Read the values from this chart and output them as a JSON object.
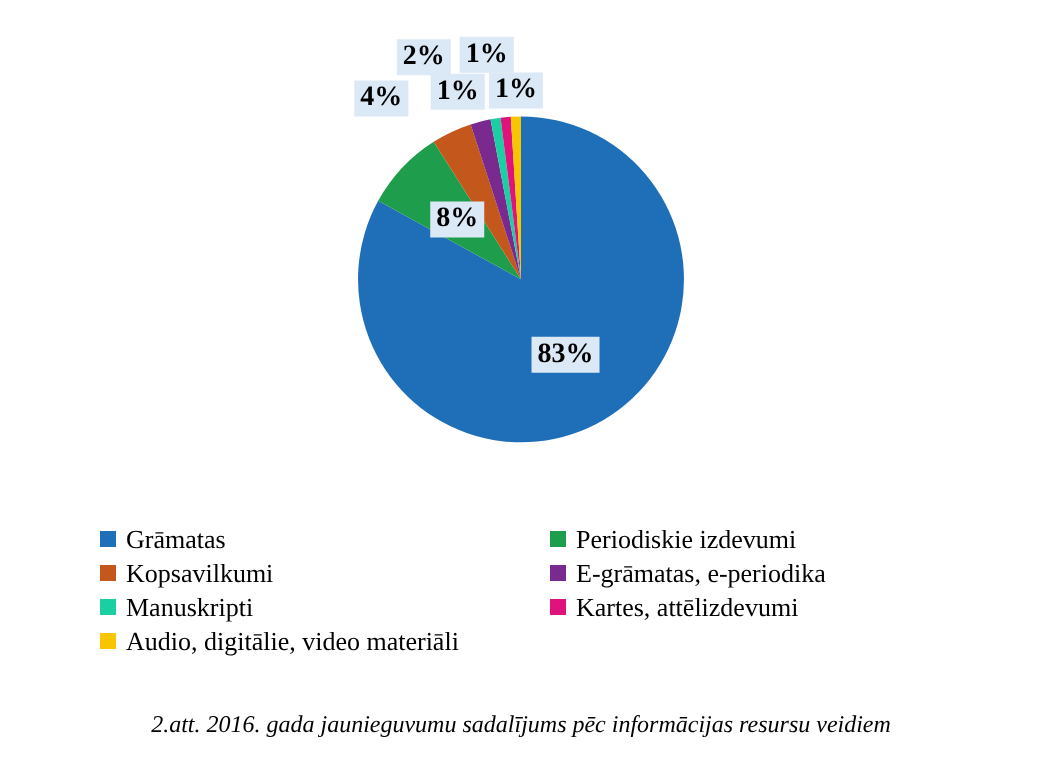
{
  "chart_data": {
    "type": "pie",
    "categories": [
      "Grāmatas",
      "Periodiskie izdevumi",
      "Kopsavilkumi",
      "E-grāmatas, e-periodika",
      "Manuskripti",
      "Kartes, attēlizdevumi",
      "Audio, digitālie, video materiāli"
    ],
    "values": [
      83,
      8,
      4,
      2,
      1,
      1,
      1
    ],
    "value_labels": [
      "83%",
      "8%",
      "4%",
      "2%",
      "1%",
      "1%",
      "1%"
    ],
    "colors": [
      "#1f6fb8",
      "#1e9e4c",
      "#c4581c",
      "#7a2a8e",
      "#1ccfa3",
      "#e0127c",
      "#f7c600"
    ],
    "legend": "bottom",
    "annotations": [
      "2.att. 2016. gada jaunieguvumu sadalījums pēc informācijas resursu veidiem"
    ]
  }
}
